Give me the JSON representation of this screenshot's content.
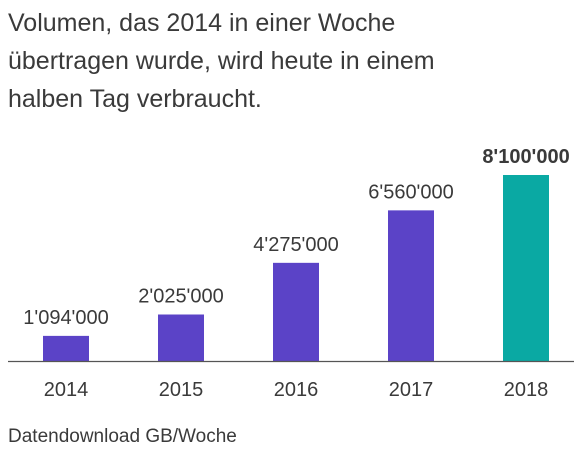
{
  "title_lines": [
    "Volumen, das 2014 in einer Woche",
    "übertragen wurde, wird heute in einem",
    "halben Tag verbraucht."
  ],
  "footnote": "Datendownload GB/Woche",
  "colors": {
    "bar": "#5b43c7",
    "highlight": "#0aa9a3",
    "axis": "#555555",
    "text": "#3a3a3a"
  },
  "chart_data": {
    "type": "bar",
    "categories": [
      "2014",
      "2015",
      "2016",
      "2017",
      "2018"
    ],
    "values": [
      1094000,
      2025000,
      4275000,
      6560000,
      8100000
    ],
    "value_labels": [
      "1'094'000",
      "2'025'000",
      "4'275'000",
      "6'560'000",
      "8'100'000"
    ],
    "highlight_index": 4,
    "ylim": [
      0,
      8100000
    ],
    "grid": false,
    "xlabel": "",
    "ylabel": ""
  }
}
